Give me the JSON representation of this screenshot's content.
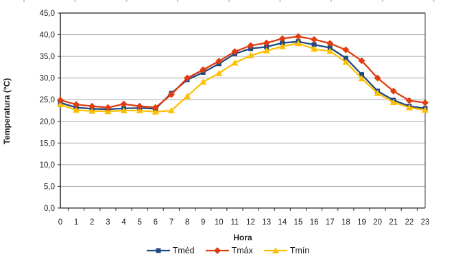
{
  "chart_data": {
    "type": "line",
    "title": "",
    "xlabel": "Hora",
    "ylabel": "Temperatura (°C)",
    "ylim": [
      0,
      45
    ],
    "ytick_step": 5,
    "y_tick_labels": [
      "0,0",
      "5,0",
      "10,0",
      "15,0",
      "20,0",
      "25,0",
      "30,0",
      "35,0",
      "40,0",
      "45,0"
    ],
    "x": [
      0,
      1,
      2,
      3,
      4,
      5,
      6,
      7,
      8,
      9,
      10,
      11,
      12,
      13,
      14,
      15,
      16,
      17,
      18,
      19,
      20,
      21,
      22,
      23
    ],
    "x_tick_labels": [
      "0",
      "1",
      "2",
      "3",
      "4",
      "5",
      "6",
      "7",
      "8",
      "9",
      "10",
      "11",
      "12",
      "13",
      "14",
      "15",
      "16",
      "17",
      "18",
      "19",
      "20",
      "21",
      "22",
      "23"
    ],
    "grid": true,
    "legend_position": "bottom",
    "series": [
      {
        "name": "Tméd",
        "marker": "square",
        "color": "#1F497D",
        "values": [
          24.3,
          23.2,
          22.9,
          22.8,
          23.0,
          23.1,
          22.9,
          26.5,
          29.6,
          31.3,
          33.3,
          35.6,
          36.8,
          37.2,
          38.1,
          38.4,
          37.7,
          37.0,
          34.6,
          30.8,
          27.0,
          24.9,
          23.5,
          23.0
        ]
      },
      {
        "name": "Tmáx",
        "marker": "diamond",
        "color": "#E03C10",
        "values": [
          24.9,
          23.9,
          23.5,
          23.2,
          24.0,
          23.5,
          23.2,
          26.2,
          30.0,
          31.9,
          33.9,
          36.1,
          37.5,
          38.1,
          39.1,
          39.6,
          38.9,
          38.0,
          36.5,
          34.0,
          30.0,
          27.0,
          24.8,
          24.3
        ]
      },
      {
        "name": "Tmín",
        "marker": "triangle",
        "color": "#FFC000",
        "values": [
          23.9,
          22.6,
          22.4,
          22.3,
          22.5,
          22.5,
          22.2,
          22.5,
          25.8,
          29.1,
          31.1,
          33.5,
          35.2,
          36.3,
          37.3,
          38.0,
          36.7,
          36.2,
          33.7,
          29.9,
          26.5,
          24.4,
          23.2,
          22.6
        ]
      }
    ],
    "colors": {
      "gridline": "#A6A6A6",
      "axis": "#262626",
      "plot_border": "#595959",
      "tick_label": "#1a1a1a"
    }
  }
}
